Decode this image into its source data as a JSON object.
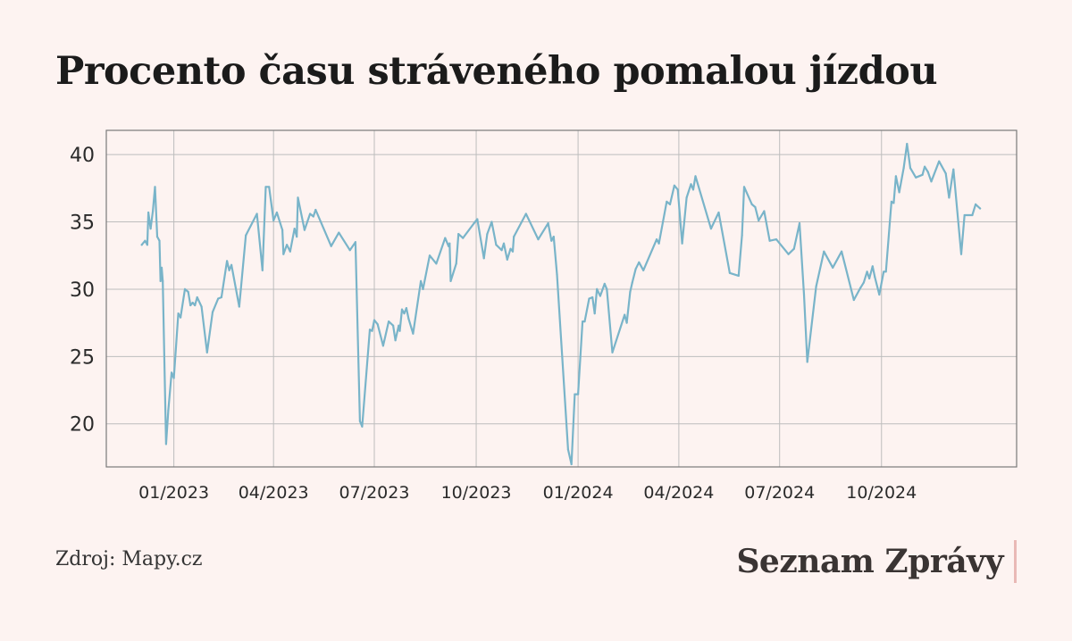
{
  "title": "Procento času stráveného pomalou jízdou",
  "source": "Zdroj: Mapy.cz",
  "brand": "Seznam Zprávy",
  "colors": {
    "background": "#fdf3f1",
    "line": "#79b4c9",
    "grid": "#bdbdbd",
    "frame": "#7a7a7a",
    "brand_bar": "#e9b9b6"
  },
  "chart_data": {
    "type": "line",
    "title": "Procento času stráveného pomalou jízdou",
    "xlabel": "",
    "ylabel": "",
    "x_axis": "date",
    "xlim": [
      "2022-11-01",
      "2025-01-31"
    ],
    "ylim": [
      16.8,
      41.8
    ],
    "grid": true,
    "legend": "none",
    "x_ticks": [
      {
        "date": "2023-01-01",
        "label": "01/2023"
      },
      {
        "date": "2023-04-01",
        "label": "04/2023"
      },
      {
        "date": "2023-07-01",
        "label": "07/2023"
      },
      {
        "date": "2023-10-01",
        "label": "10/2023"
      },
      {
        "date": "2024-01-01",
        "label": "01/2024"
      },
      {
        "date": "2024-04-01",
        "label": "04/2024"
      },
      {
        "date": "2024-07-01",
        "label": "07/2024"
      },
      {
        "date": "2024-10-01",
        "label": "10/2024"
      }
    ],
    "y_ticks": [
      {
        "value": 20,
        "label": "20"
      },
      {
        "value": 25,
        "label": "25"
      },
      {
        "value": 30,
        "label": "30"
      },
      {
        "value": 35,
        "label": "35"
      },
      {
        "value": 40,
        "label": "40"
      }
    ],
    "series": [
      {
        "points": [
          [
            "2022-12-03",
            33.3
          ],
          [
            "2022-12-06",
            33.6
          ],
          [
            "2022-12-08",
            33.3
          ],
          [
            "2022-12-09",
            35.7
          ],
          [
            "2022-12-11",
            34.5
          ],
          [
            "2022-12-13",
            35.8
          ],
          [
            "2022-12-15",
            37.6
          ],
          [
            "2022-12-17",
            33.9
          ],
          [
            "2022-12-19",
            33.6
          ],
          [
            "2022-12-20",
            30.6
          ],
          [
            "2022-12-21",
            31.6
          ],
          [
            "2022-12-22",
            30.6
          ],
          [
            "2022-12-25",
            18.5
          ],
          [
            "2022-12-27",
            21.0
          ],
          [
            "2022-12-30",
            23.8
          ],
          [
            "2023-01-01",
            23.4
          ],
          [
            "2023-01-05",
            28.2
          ],
          [
            "2023-01-07",
            27.9
          ],
          [
            "2023-01-11",
            30.0
          ],
          [
            "2023-01-14",
            29.8
          ],
          [
            "2023-01-16",
            28.8
          ],
          [
            "2023-01-18",
            29.0
          ],
          [
            "2023-01-20",
            28.8
          ],
          [
            "2023-01-22",
            29.4
          ],
          [
            "2023-01-26",
            28.7
          ],
          [
            "2023-01-31",
            25.3
          ],
          [
            "2023-02-05",
            28.3
          ],
          [
            "2023-02-10",
            29.3
          ],
          [
            "2023-02-13",
            29.4
          ],
          [
            "2023-02-18",
            32.1
          ],
          [
            "2023-02-20",
            31.4
          ],
          [
            "2023-02-22",
            31.8
          ],
          [
            "2023-03-01",
            28.7
          ],
          [
            "2023-03-07",
            34.0
          ],
          [
            "2023-03-17",
            35.6
          ],
          [
            "2023-03-22",
            31.4
          ],
          [
            "2023-03-25",
            37.6
          ],
          [
            "2023-03-28",
            37.6
          ],
          [
            "2023-04-01",
            35.1
          ],
          [
            "2023-04-04",
            35.7
          ],
          [
            "2023-04-09",
            34.4
          ],
          [
            "2023-04-10",
            32.6
          ],
          [
            "2023-04-13",
            33.3
          ],
          [
            "2023-04-16",
            32.8
          ],
          [
            "2023-04-20",
            34.5
          ],
          [
            "2023-04-22",
            33.9
          ],
          [
            "2023-04-23",
            36.8
          ],
          [
            "2023-04-29",
            34.4
          ],
          [
            "2023-05-04",
            35.6
          ],
          [
            "2023-05-07",
            35.4
          ],
          [
            "2023-05-09",
            35.9
          ],
          [
            "2023-05-23",
            33.2
          ],
          [
            "2023-05-30",
            34.2
          ],
          [
            "2023-06-09",
            32.9
          ],
          [
            "2023-06-14",
            33.5
          ],
          [
            "2023-06-18",
            20.2
          ],
          [
            "2023-06-20",
            19.8
          ],
          [
            "2023-06-27",
            27.0
          ],
          [
            "2023-06-29",
            26.9
          ],
          [
            "2023-07-01",
            27.7
          ],
          [
            "2023-07-04",
            27.4
          ],
          [
            "2023-07-09",
            25.8
          ],
          [
            "2023-07-14",
            27.6
          ],
          [
            "2023-07-18",
            27.3
          ],
          [
            "2023-07-20",
            26.2
          ],
          [
            "2023-07-23",
            27.3
          ],
          [
            "2023-07-24",
            26.9
          ],
          [
            "2023-07-26",
            28.5
          ],
          [
            "2023-07-28",
            28.2
          ],
          [
            "2023-07-30",
            28.6
          ],
          [
            "2023-08-01",
            27.8
          ],
          [
            "2023-08-05",
            26.7
          ],
          [
            "2023-08-12",
            30.6
          ],
          [
            "2023-08-14",
            30.0
          ],
          [
            "2023-08-20",
            32.5
          ],
          [
            "2023-08-26",
            31.9
          ],
          [
            "2023-09-03",
            33.8
          ],
          [
            "2023-09-06",
            33.2
          ],
          [
            "2023-09-07",
            33.4
          ],
          [
            "2023-09-08",
            30.6
          ],
          [
            "2023-09-13",
            31.9
          ],
          [
            "2023-09-15",
            34.1
          ],
          [
            "2023-09-19",
            33.8
          ],
          [
            "2023-09-29",
            34.9
          ],
          [
            "2023-10-02",
            35.2
          ],
          [
            "2023-10-08",
            32.3
          ],
          [
            "2023-10-11",
            34.1
          ],
          [
            "2023-10-15",
            35.0
          ],
          [
            "2023-10-19",
            33.3
          ],
          [
            "2023-10-24",
            32.9
          ],
          [
            "2023-10-26",
            33.4
          ],
          [
            "2023-10-29",
            32.2
          ],
          [
            "2023-11-01",
            33.0
          ],
          [
            "2023-11-03",
            32.8
          ],
          [
            "2023-11-04",
            33.9
          ],
          [
            "2023-11-15",
            35.6
          ],
          [
            "2023-11-26",
            33.7
          ],
          [
            "2023-12-05",
            34.9
          ],
          [
            "2023-12-08",
            33.6
          ],
          [
            "2023-12-10",
            33.9
          ],
          [
            "2023-12-13",
            31.1
          ],
          [
            "2023-12-23",
            18.1
          ],
          [
            "2023-12-26",
            17.0
          ],
          [
            "2023-12-29",
            22.2
          ],
          [
            "2024-01-01",
            22.2
          ],
          [
            "2024-01-05",
            27.6
          ],
          [
            "2024-01-07",
            27.6
          ],
          [
            "2024-01-11",
            29.3
          ],
          [
            "2024-01-14",
            29.4
          ],
          [
            "2024-01-16",
            28.2
          ],
          [
            "2024-01-18",
            30.0
          ],
          [
            "2024-01-21",
            29.5
          ],
          [
            "2024-01-25",
            30.4
          ],
          [
            "2024-01-27",
            30.0
          ],
          [
            "2024-02-01",
            25.3
          ],
          [
            "2024-02-12",
            28.1
          ],
          [
            "2024-02-14",
            27.5
          ],
          [
            "2024-02-17",
            29.8
          ],
          [
            "2024-02-19",
            30.5
          ],
          [
            "2024-02-22",
            31.5
          ],
          [
            "2024-02-25",
            32.0
          ],
          [
            "2024-02-29",
            31.4
          ],
          [
            "2024-03-12",
            33.7
          ],
          [
            "2024-03-14",
            33.4
          ],
          [
            "2024-03-21",
            36.5
          ],
          [
            "2024-03-24",
            36.3
          ],
          [
            "2024-03-28",
            37.7
          ],
          [
            "2024-03-31",
            37.4
          ],
          [
            "2024-04-04",
            33.4
          ],
          [
            "2024-04-08",
            36.8
          ],
          [
            "2024-04-12",
            37.8
          ],
          [
            "2024-04-14",
            37.4
          ],
          [
            "2024-04-16",
            38.4
          ],
          [
            "2024-04-30",
            34.5
          ],
          [
            "2024-05-07",
            35.7
          ],
          [
            "2024-05-17",
            31.2
          ],
          [
            "2024-05-25",
            31.0
          ],
          [
            "2024-05-28",
            34.0
          ],
          [
            "2024-05-30",
            37.6
          ],
          [
            "2024-06-06",
            36.3
          ],
          [
            "2024-06-09",
            36.1
          ],
          [
            "2024-06-12",
            35.1
          ],
          [
            "2024-06-17",
            35.8
          ],
          [
            "2024-06-22",
            33.6
          ],
          [
            "2024-06-28",
            33.7
          ],
          [
            "2024-07-09",
            32.6
          ],
          [
            "2024-07-14",
            33.0
          ],
          [
            "2024-07-19",
            34.9
          ],
          [
            "2024-07-23",
            29.6
          ],
          [
            "2024-07-26",
            24.6
          ],
          [
            "2024-08-03",
            30.2
          ],
          [
            "2024-08-10",
            32.8
          ],
          [
            "2024-08-18",
            31.6
          ],
          [
            "2024-08-26",
            32.8
          ],
          [
            "2024-09-06",
            29.2
          ],
          [
            "2024-09-12",
            30.1
          ],
          [
            "2024-09-15",
            30.5
          ],
          [
            "2024-09-18",
            31.3
          ],
          [
            "2024-09-20",
            30.8
          ],
          [
            "2024-09-23",
            31.7
          ],
          [
            "2024-09-25",
            30.9
          ],
          [
            "2024-09-29",
            29.6
          ],
          [
            "2024-10-03",
            31.3
          ],
          [
            "2024-10-05",
            31.3
          ],
          [
            "2024-10-10",
            36.5
          ],
          [
            "2024-10-12",
            36.4
          ],
          [
            "2024-10-14",
            38.4
          ],
          [
            "2024-10-17",
            37.2
          ],
          [
            "2024-10-21",
            39.0
          ],
          [
            "2024-10-24",
            40.8
          ],
          [
            "2024-10-27",
            39.0
          ],
          [
            "2024-11-01",
            38.3
          ],
          [
            "2024-11-07",
            38.5
          ],
          [
            "2024-11-09",
            39.1
          ],
          [
            "2024-11-12",
            38.7
          ],
          [
            "2024-11-15",
            38.0
          ],
          [
            "2024-11-22",
            39.5
          ],
          [
            "2024-11-28",
            38.6
          ],
          [
            "2024-12-01",
            36.8
          ],
          [
            "2024-12-05",
            38.9
          ],
          [
            "2024-12-12",
            32.6
          ],
          [
            "2024-12-15",
            35.5
          ],
          [
            "2024-12-22",
            35.5
          ],
          [
            "2024-12-25",
            36.3
          ],
          [
            "2024-12-29",
            36.0
          ]
        ]
      }
    ]
  }
}
